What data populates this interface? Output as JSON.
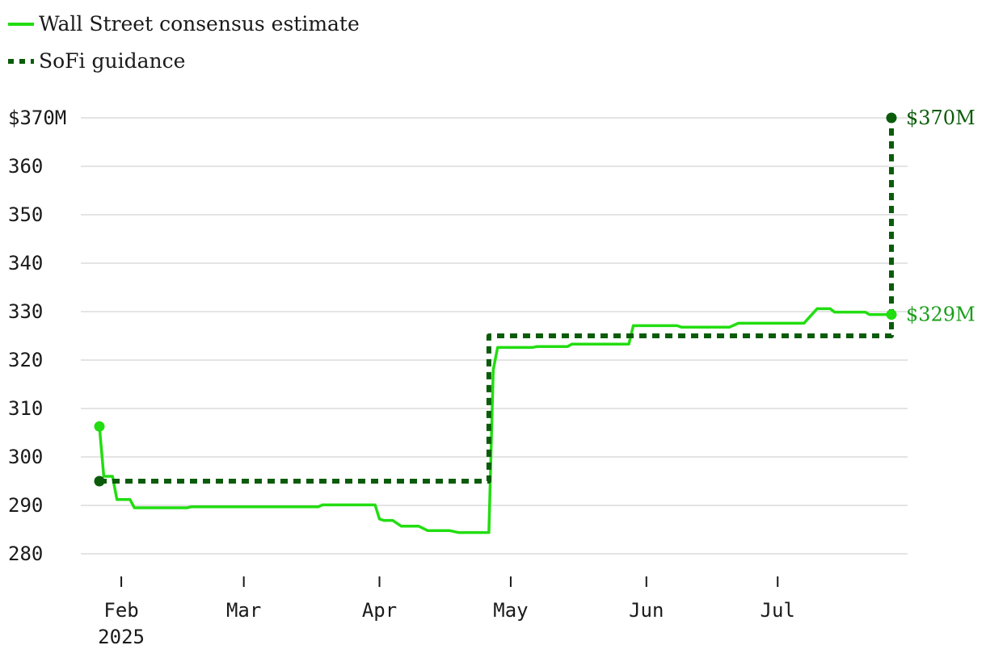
{
  "chart_data": {
    "type": "line",
    "y_axis": {
      "ticks": [
        280,
        290,
        300,
        310,
        320,
        330,
        340,
        350,
        360,
        370
      ],
      "tick_labels": [
        "280",
        "290",
        "300",
        "310",
        "320",
        "330",
        "340",
        "350",
        "360",
        "$370M"
      ],
      "range": [
        280,
        370
      ]
    },
    "x_axis": {
      "range": [
        "2025-01-27",
        "2025-07-31"
      ],
      "ticks": [
        {
          "date": "2025-02-01",
          "label": "Feb",
          "sublabel": "2025"
        },
        {
          "date": "2025-03-01",
          "label": "Mar",
          "sublabel": ""
        },
        {
          "date": "2025-04-01",
          "label": "Apr",
          "sublabel": ""
        },
        {
          "date": "2025-05-01",
          "label": "May",
          "sublabel": ""
        },
        {
          "date": "2025-06-01",
          "label": "Jun",
          "sublabel": ""
        },
        {
          "date": "2025-07-01",
          "label": "Jul",
          "sublabel": ""
        }
      ]
    },
    "grid": true,
    "legend_position": "top-left",
    "series": [
      {
        "name": "Wall Street consensus estimate",
        "color": "#22dd11",
        "style": "solid",
        "end_label": "$329M",
        "points": [
          [
            "2025-01-27",
            306.3
          ],
          [
            "2025-01-28",
            296
          ],
          [
            "2025-01-30",
            296
          ],
          [
            "2025-01-31",
            291.2
          ],
          [
            "2025-02-03",
            291.2
          ],
          [
            "2025-02-04",
            289.5
          ],
          [
            "2025-02-16",
            289.5
          ],
          [
            "2025-02-17",
            289.7
          ],
          [
            "2025-03-18",
            289.7
          ],
          [
            "2025-03-19",
            290.1
          ],
          [
            "2025-03-31",
            290.1
          ],
          [
            "2025-04-01",
            287.2
          ],
          [
            "2025-04-02",
            286.9
          ],
          [
            "2025-04-04",
            286.9
          ],
          [
            "2025-04-06",
            285.7
          ],
          [
            "2025-04-10",
            285.7
          ],
          [
            "2025-04-12",
            284.8
          ],
          [
            "2025-04-17",
            284.8
          ],
          [
            "2025-04-19",
            284.4
          ],
          [
            "2025-04-26",
            284.4
          ],
          [
            "2025-04-27",
            318
          ],
          [
            "2025-04-28",
            322.6
          ],
          [
            "2025-05-06",
            322.6
          ],
          [
            "2025-05-07",
            322.8
          ],
          [
            "2025-05-14",
            322.8
          ],
          [
            "2025-05-15",
            323.3
          ],
          [
            "2025-05-28",
            323.3
          ],
          [
            "2025-05-29",
            327.1
          ],
          [
            "2025-06-08",
            327.1
          ],
          [
            "2025-06-09",
            326.8
          ],
          [
            "2025-06-20",
            326.8
          ],
          [
            "2025-06-22",
            327.6
          ],
          [
            "2025-07-07",
            327.6
          ],
          [
            "2025-07-10",
            330.6
          ],
          [
            "2025-07-13",
            330.6
          ],
          [
            "2025-07-14",
            329.9
          ],
          [
            "2025-07-21",
            329.9
          ],
          [
            "2025-07-22",
            329.4
          ],
          [
            "2025-07-27",
            329.4
          ]
        ]
      },
      {
        "name": "SoFi guidance",
        "color": "#0a5c0a",
        "style": "dashed",
        "end_label": "$370M",
        "points": [
          [
            "2025-01-27",
            295
          ],
          [
            "2025-04-26",
            295
          ],
          [
            "2025-04-26",
            325
          ],
          [
            "2025-07-27",
            325
          ],
          [
            "2025-07-27",
            370
          ]
        ]
      }
    ]
  }
}
